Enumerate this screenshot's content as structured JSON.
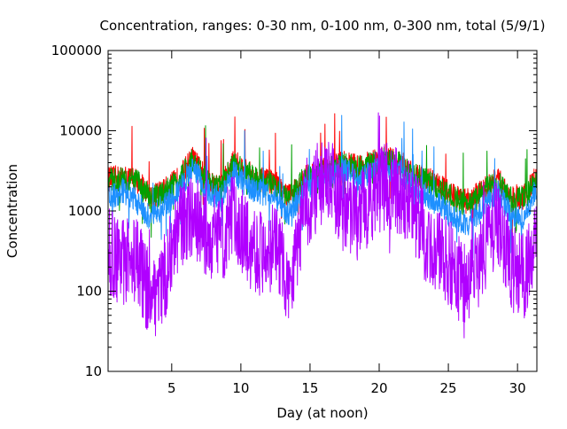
{
  "chart_data": {
    "type": "line",
    "title": "Concentration, ranges: 0-30 nm, 0-100 nm, 0-300 nm, total (5/9/1)",
    "xlabel": "Day (at noon)",
    "ylabel": "Concentration",
    "yscale": "log",
    "xlim": [
      0.4,
      31.4
    ],
    "ylim": [
      10,
      100000
    ],
    "xticks": [
      5,
      10,
      15,
      20,
      25,
      30
    ],
    "yticks": [
      10,
      100,
      1000,
      10000,
      100000
    ],
    "grid": false,
    "legend": "none",
    "x": [
      0.5,
      1.5,
      2.5,
      3.5,
      4.5,
      5.5,
      6.5,
      7.5,
      8.5,
      9.5,
      10.5,
      11.5,
      12.5,
      13.5,
      14.5,
      15.5,
      16.5,
      17.5,
      18.5,
      19.5,
      20.5,
      21.5,
      22.5,
      23.5,
      24.5,
      25.5,
      26.5,
      27.5,
      28.5,
      29.5,
      30.5,
      31.3
    ],
    "series": [
      {
        "color": "#ff0000",
        "values": [
          2500,
          2600,
          2400,
          1500,
          1800,
          2500,
          4500,
          2500,
          2000,
          4000,
          3000,
          2400,
          2200,
          1500,
          2500,
          3000,
          3500,
          4000,
          3500,
          4000,
          4500,
          4000,
          3000,
          2500,
          2000,
          1500,
          1300,
          1800,
          2500,
          1500,
          1500,
          2500
        ]
      },
      {
        "color": "#00a000",
        "values": [
          2400,
          2500,
          2300,
          1400,
          1700,
          2400,
          4300,
          2400,
          1900,
          3800,
          2900,
          2300,
          2100,
          1400,
          2400,
          2900,
          3400,
          3800,
          3400,
          3800,
          4300,
          3800,
          2800,
          2300,
          1800,
          1400,
          1200,
          1700,
          2300,
          1400,
          1400,
          2300
        ]
      },
      {
        "color": "#1e90ff",
        "values": [
          1500,
          1800,
          1300,
          800,
          1200,
          1800,
          3500,
          1800,
          1400,
          3000,
          2000,
          1700,
          1500,
          900,
          1800,
          2500,
          2800,
          3200,
          2500,
          3000,
          3500,
          3000,
          2000,
          1500,
          1100,
          800,
          700,
          1100,
          1800,
          900,
          800,
          1800
        ]
      },
      {
        "color": "#b000ff",
        "values": [
          300,
          220,
          250,
          80,
          150,
          600,
          900,
          500,
          400,
          900,
          400,
          300,
          350,
          120,
          900,
          2000,
          2200,
          1200,
          800,
          1500,
          2000,
          1800,
          1000,
          400,
          300,
          150,
          120,
          300,
          800,
          200,
          150,
          400
        ]
      }
    ]
  }
}
